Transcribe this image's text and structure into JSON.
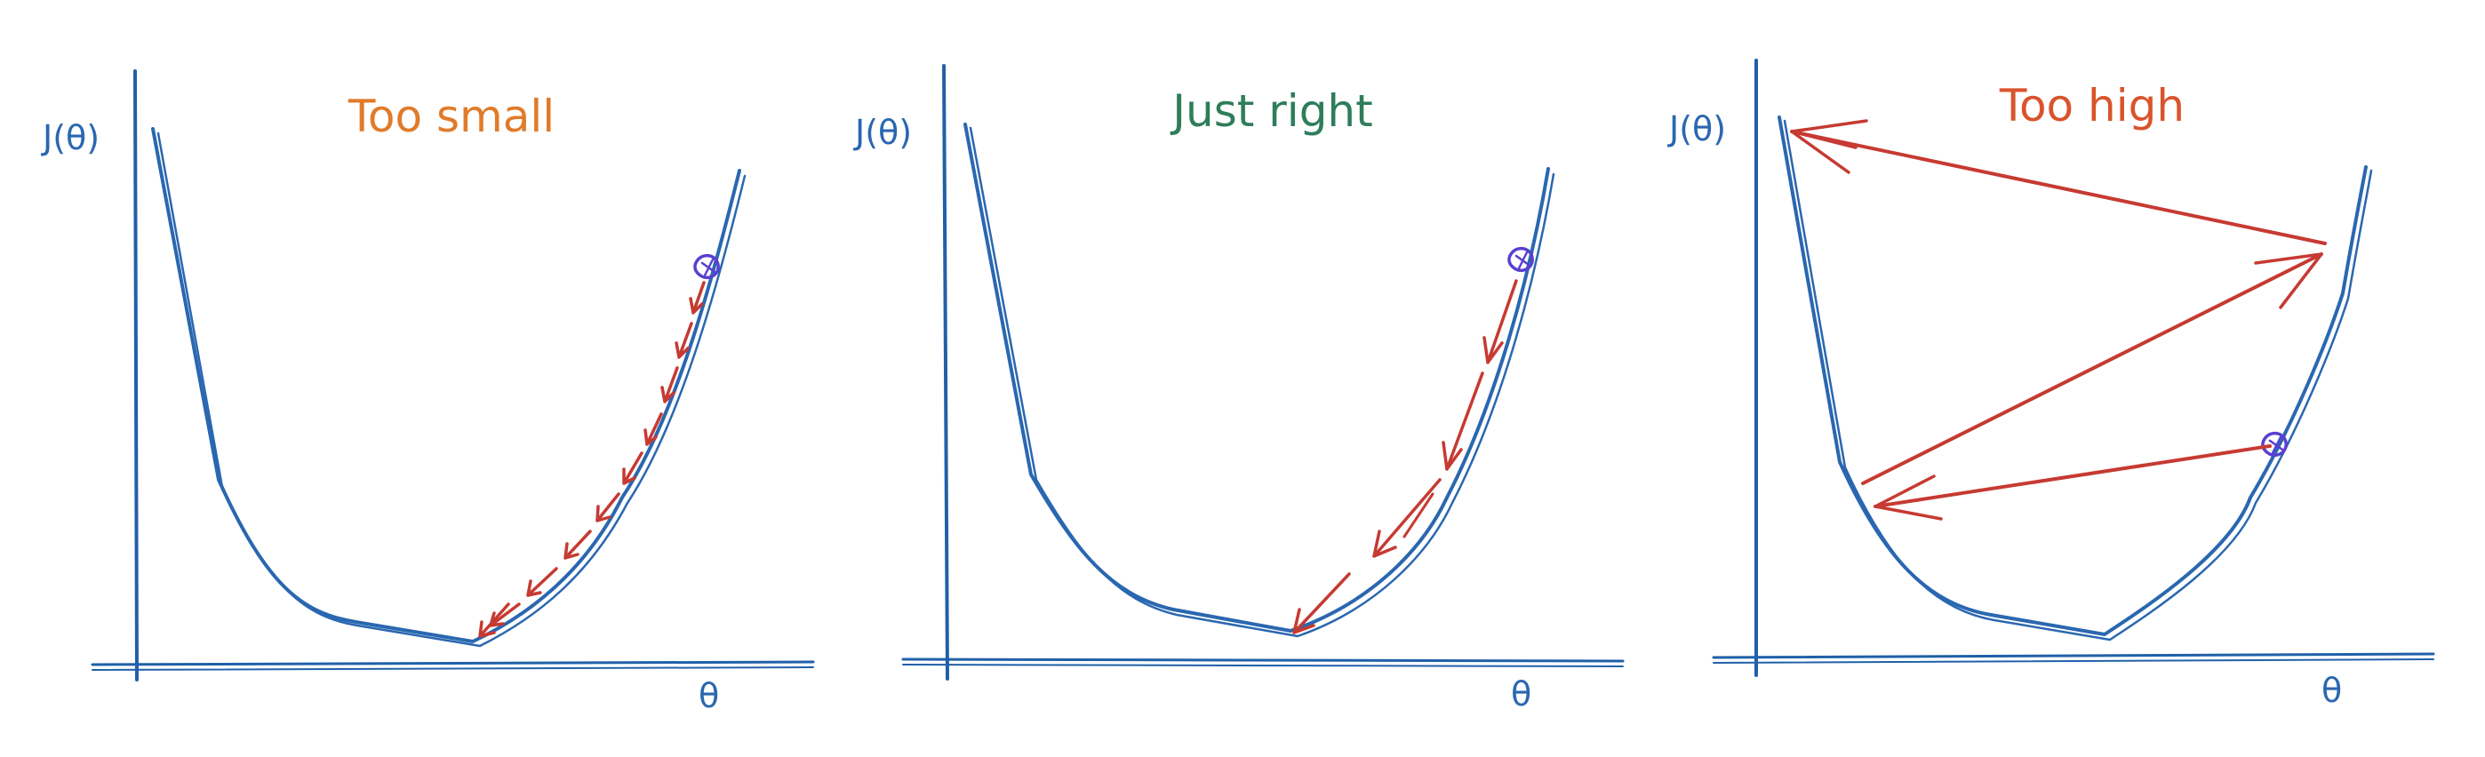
{
  "panels": [
    {
      "title": "Too small",
      "title_color": "#e07b2a",
      "ylabel": "J(θ)",
      "xlabel": "θ"
    },
    {
      "title": "Just right",
      "title_color": "#2e7d5b",
      "ylabel": "J(θ)",
      "xlabel": "θ"
    },
    {
      "title": "Too high",
      "title_color": "#d9542c",
      "ylabel": "J(θ)",
      "xlabel": "θ"
    }
  ],
  "colors": {
    "axis": "#2060a8",
    "curve": "#2a67b0",
    "arrow": "#c63a32",
    "ball": "#5a3fd0"
  },
  "icons": [
    "ball-icon",
    "arrow-icon"
  ]
}
